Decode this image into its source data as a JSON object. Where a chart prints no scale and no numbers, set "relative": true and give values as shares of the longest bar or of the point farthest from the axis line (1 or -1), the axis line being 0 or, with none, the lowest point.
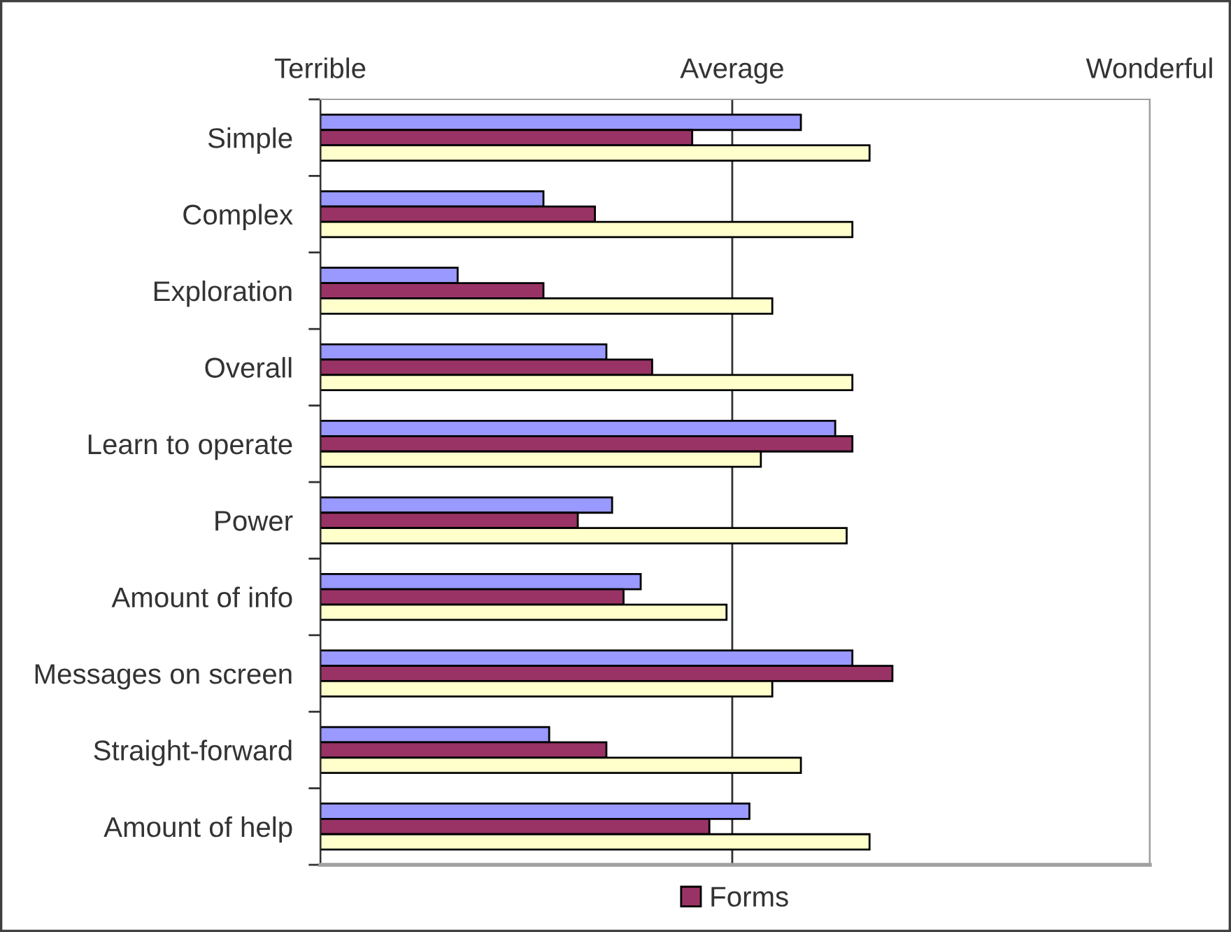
{
  "chart_data": {
    "type": "bar",
    "orientation": "horizontal",
    "relative": true,
    "categories": [
      "Simple",
      "Complex",
      "Exploration",
      "Overall",
      "Learn to operate",
      "Power",
      "Amount of info",
      "Messages on screen",
      "Straight-forward",
      "Amount of help"
    ],
    "series": [
      {
        "color": "#9999ff",
        "values": [
          0.84,
          0.39,
          0.24,
          0.5,
          0.9,
          0.51,
          0.56,
          0.93,
          0.4,
          0.75
        ]
      },
      {
        "name": "Forms",
        "color": "#993366",
        "values": [
          0.65,
          0.48,
          0.39,
          0.58,
          0.93,
          0.45,
          0.53,
          1,
          0.5,
          0.68
        ]
      },
      {
        "color": "#ffffcc",
        "values": [
          0.96,
          0.93,
          0.79,
          0.93,
          0.77,
          0.92,
          0.71,
          0.79,
          0.84,
          0.96
        ]
      }
    ],
    "ref_lines": [
      {
        "axis": "x",
        "value": 0,
        "label": "Terrible",
        "color": "#333333"
      },
      {
        "axis": "x",
        "value": 0.72,
        "label": "Average",
        "color": "#333333"
      },
      {
        "axis": "x",
        "value": 1.45,
        "label": "Wonderful",
        "color": "#a0a0a0"
      }
    ],
    "legend": "bottom"
  }
}
